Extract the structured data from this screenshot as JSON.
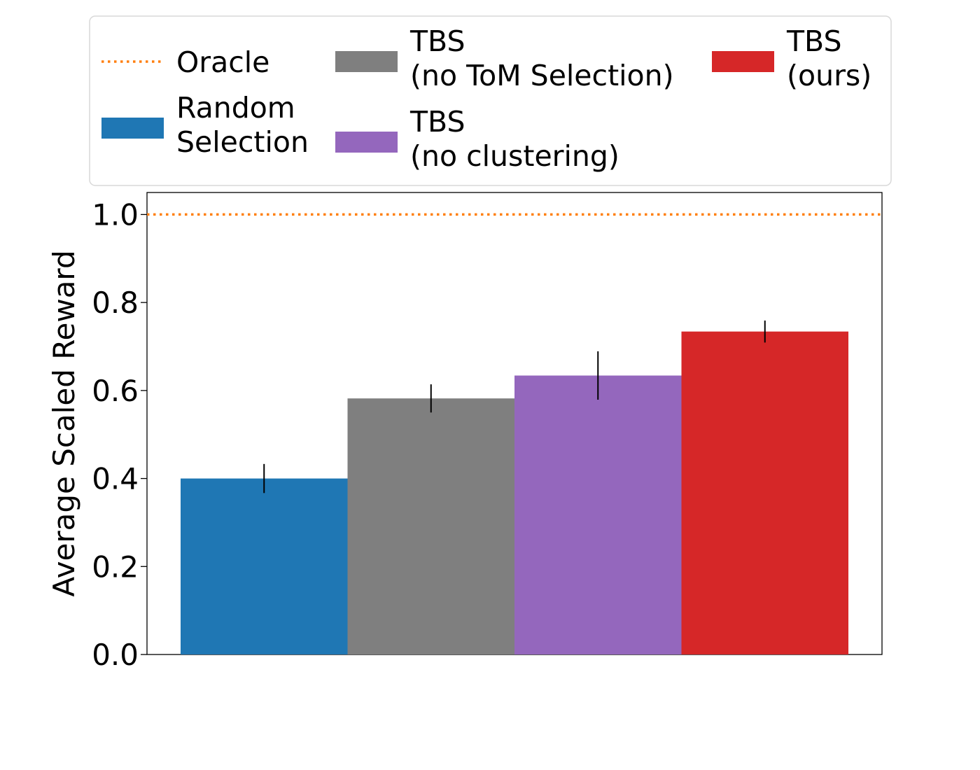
{
  "chart_data": {
    "type": "bar",
    "title": "",
    "xlabel": "",
    "ylabel": "Average Scaled Reward",
    "ylim": [
      0,
      1.05
    ],
    "yticks": [
      "0.0",
      "0.2",
      "0.4",
      "0.6",
      "0.8",
      "1.0"
    ],
    "ytick_values": [
      0.0,
      0.2,
      0.4,
      0.6,
      0.8,
      1.0
    ],
    "reference_line": {
      "name": "Oracle",
      "value": 1.0,
      "color": "#ff7f0e",
      "style": "dotted"
    },
    "series": [
      {
        "name": "Random Selection",
        "label_lines": [
          "Random",
          "Selection"
        ],
        "value": 0.4,
        "error": 0.033,
        "color": "#1f77b4"
      },
      {
        "name": "TBS (no ToM Selection)",
        "label_lines": [
          "TBS",
          "(no ToM Selection)"
        ],
        "value": 0.582,
        "error": 0.032,
        "color": "#7f7f7f"
      },
      {
        "name": "TBS (no clustering)",
        "label_lines": [
          "TBS",
          "(no clustering)"
        ],
        "value": 0.634,
        "error": 0.055,
        "color": "#9467bd"
      },
      {
        "name": "TBS (ours)",
        "label_lines": [
          "TBS",
          "(ours)"
        ],
        "value": 0.734,
        "error": 0.025,
        "color": "#d62728"
      }
    ],
    "legend": {
      "placement": "top",
      "entries": [
        {
          "key": "oracle",
          "lines": [
            "Oracle"
          ]
        },
        {
          "key": "random",
          "lines": [
            "Random",
            "Selection"
          ]
        },
        {
          "key": "no_tom",
          "lines": [
            "TBS",
            "(no ToM Selection)"
          ]
        },
        {
          "key": "no_clustering",
          "lines": [
            "TBS",
            "(no clustering)"
          ]
        },
        {
          "key": "ours",
          "lines": [
            "TBS",
            "(ours)"
          ]
        }
      ]
    },
    "grid": false
  }
}
